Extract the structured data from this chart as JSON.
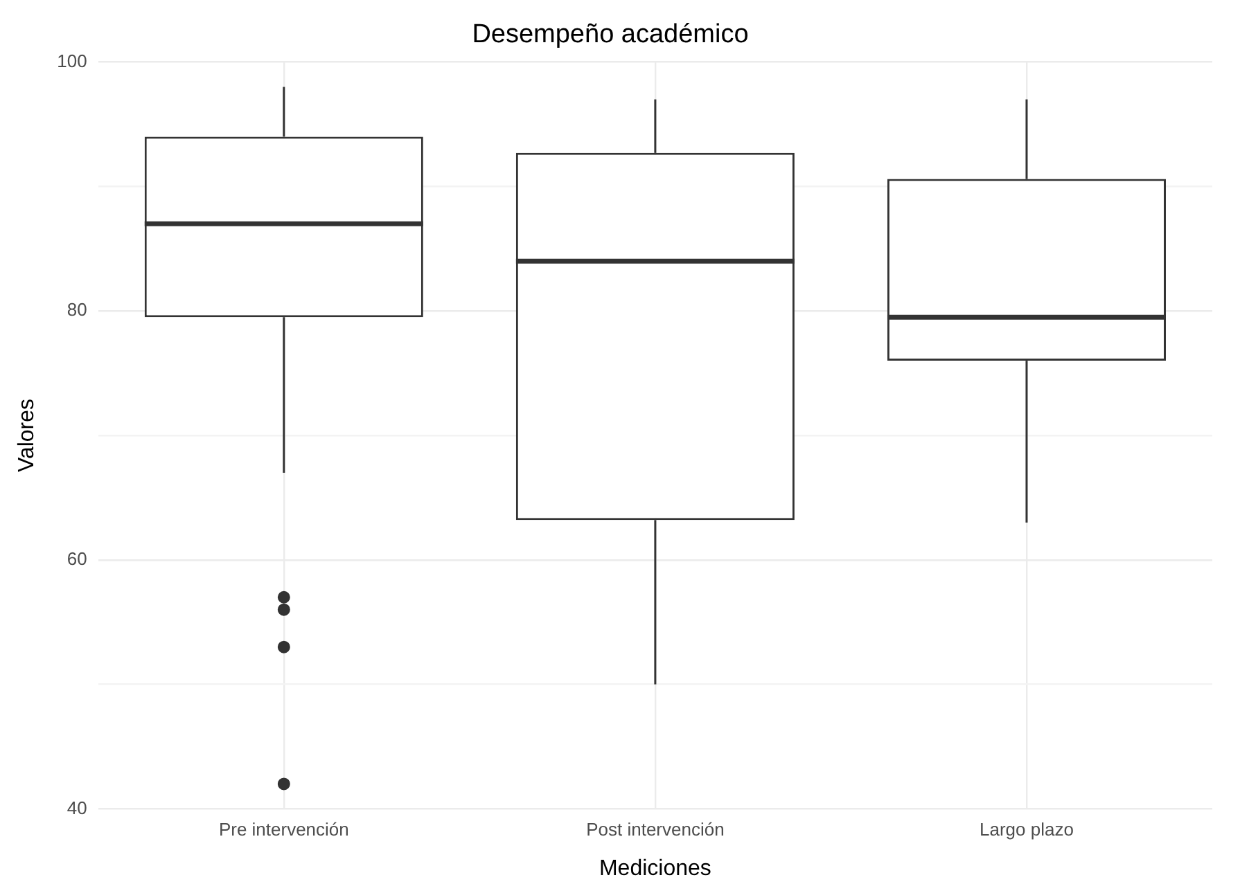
{
  "chart_data": {
    "type": "box",
    "title": "Desempeño académico",
    "xlabel": "Mediciones",
    "ylabel": "Valores",
    "categories": [
      "Pre intervención",
      "Post intervención",
      "Largo plazo"
    ],
    "boxes": [
      {
        "low": 67,
        "q1": 79.5,
        "median": 87,
        "q3": 94,
        "high": 98,
        "outliers": [
          57,
          56,
          53,
          42
        ]
      },
      {
        "low": 50,
        "q1": 63.2,
        "median": 84,
        "q3": 92.7,
        "high": 97
      },
      {
        "low": 63,
        "q1": 76,
        "median": 79.5,
        "q3": 90.6,
        "high": 97
      }
    ],
    "color": "#333333",
    "ylim": [
      40,
      100
    ],
    "yticks": [
      40,
      {
        "value": 50,
        "label": null
      },
      60,
      {
        "value": 70,
        "label": null
      },
      80,
      {
        "value": 90,
        "label": null
      },
      100
    ],
    "grid": true
  }
}
